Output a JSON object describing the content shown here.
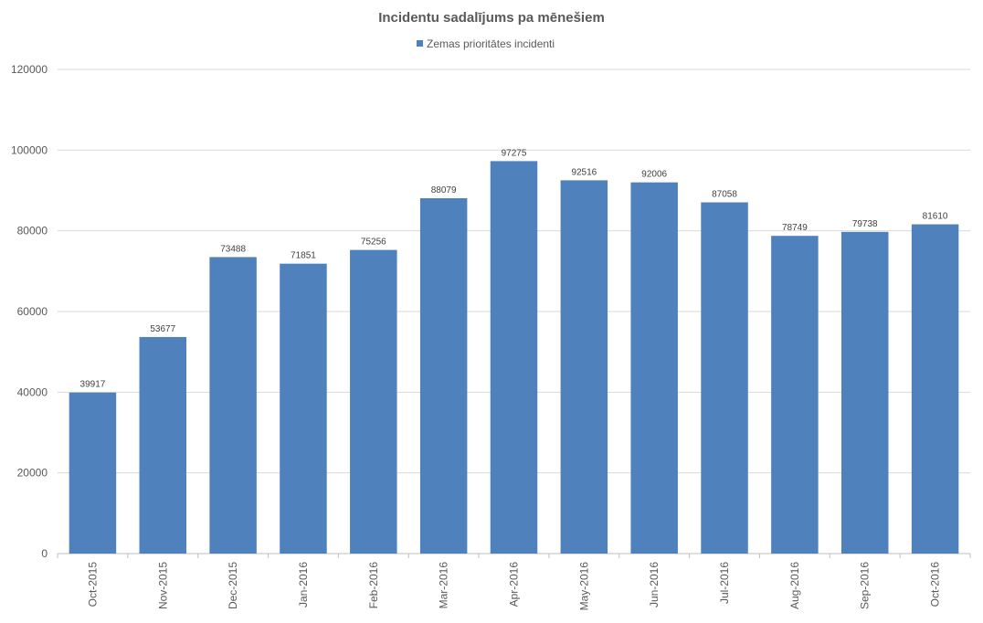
{
  "chart_data": {
    "type": "bar",
    "title": "Incidentu sadalījums pa mēnešiem",
    "categories": [
      "Oct-2015",
      "Nov-2015",
      "Dec-2015",
      "Jan-2016",
      "Feb-2016",
      "Mar-2016",
      "Apr-2016",
      "May-2016",
      "Jun-2016",
      "Jul-2016",
      "Aug-2016",
      "Sep-2016",
      "Oct-2016"
    ],
    "series": [
      {
        "name": "Zemas prioritātes incidenti",
        "color": "#4f81bd",
        "values": [
          39917,
          53677,
          73488,
          71851,
          75256,
          88079,
          97275,
          92516,
          92006,
          87058,
          78749,
          79738,
          81610
        ]
      }
    ],
    "xlabel": "",
    "ylabel": "",
    "ylim": [
      0,
      120000
    ],
    "yticks": [
      "0",
      "20000",
      "40000",
      "60000",
      "80000",
      "100000",
      "120000"
    ],
    "grid": true,
    "legend_position": "top",
    "data_labels": true
  }
}
